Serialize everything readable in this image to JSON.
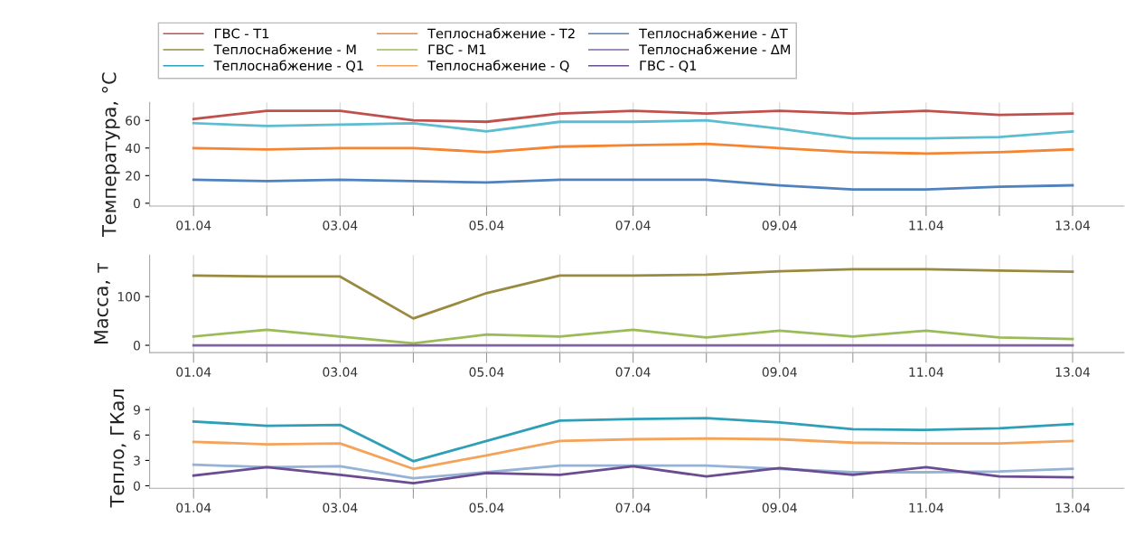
{
  "chart_data": [
    {
      "type": "line",
      "ylabel": "Температура, °C",
      "legend": "top",
      "grid": "x",
      "marker": "none",
      "categories": [
        "01.04",
        null,
        "03.04",
        null,
        "05.04",
        null,
        "07.04",
        null,
        "09.04",
        null,
        "11.04",
        null,
        "13.04"
      ],
      "ylim": [
        -2,
        73
      ],
      "yticks": [
        0,
        20,
        40,
        60
      ],
      "series": [
        {
          "name": "ГВС - T1",
          "color": "#c0504d",
          "values": [
            61,
            67,
            67,
            60,
            59,
            65,
            67,
            65,
            67,
            65,
            67,
            64,
            65
          ]
        },
        {
          "color": "#5cbcd0",
          "values": [
            58,
            56,
            57,
            58,
            52,
            59,
            59,
            60,
            54,
            47,
            47,
            48,
            52
          ]
        },
        {
          "name": "Теплоснабжение - T2",
          "color": "#f58532",
          "values": [
            40,
            39,
            40,
            40,
            37,
            41,
            42,
            43,
            40,
            37,
            36,
            37,
            39
          ]
        },
        {
          "name": "Теплоснабжение - ΔT",
          "color": "#4f81bd",
          "values": [
            17,
            16,
            17,
            16,
            15,
            17,
            17,
            17,
            13,
            10,
            10,
            12,
            13
          ]
        }
      ]
    },
    {
      "type": "line",
      "ylabel": "Масса, т",
      "legend": "top",
      "grid": "x",
      "marker": "none",
      "categories": [
        "01.04",
        null,
        "03.04",
        null,
        "05.04",
        null,
        "07.04",
        null,
        "09.04",
        null,
        "11.04",
        null,
        "13.04"
      ],
      "ylim": [
        -15,
        185
      ],
      "yticks": [
        0,
        100
      ],
      "series": [
        {
          "name": "Теплоснабжение - M",
          "color": "#9a8a40",
          "values": [
            143,
            141,
            141,
            55,
            107,
            143,
            143,
            145,
            152,
            156,
            156,
            153,
            151
          ]
        },
        {
          "name": "ГВС - M1",
          "color": "#9bbb59",
          "values": [
            18,
            32,
            18,
            4,
            22,
            18,
            32,
            16,
            30,
            18,
            30,
            16,
            13
          ]
        },
        {
          "name": "Теплоснабжение - ΔM",
          "color": "#8064a2",
          "values": [
            0,
            0,
            0,
            0,
            0,
            0,
            0,
            0,
            0,
            0,
            0,
            0,
            0
          ]
        }
      ]
    },
    {
      "type": "line",
      "ylabel": "Тепло, ГКал",
      "legend": "top",
      "grid": "x",
      "marker": "none",
      "categories": [
        "01.04",
        null,
        "03.04",
        null,
        "05.04",
        null,
        "07.04",
        null,
        "09.04",
        null,
        "11.04",
        null,
        "13.04"
      ],
      "ylim": [
        -0.3,
        9.3
      ],
      "yticks": [
        0,
        3,
        6,
        9
      ],
      "series": [
        {
          "name": "Теплоснабжение - Q1",
          "color": "#2f9fb8",
          "values": [
            7.6,
            7.1,
            7.2,
            2.9,
            5.3,
            7.7,
            7.9,
            8.0,
            7.5,
            6.7,
            6.6,
            6.8,
            7.3
          ]
        },
        {
          "name": "Теплоснабжение - Q",
          "color": "#f4a45a",
          "values": [
            5.2,
            4.9,
            5.0,
            2.0,
            3.6,
            5.3,
            5.5,
            5.6,
            5.5,
            5.1,
            5.0,
            5.0,
            5.3
          ]
        },
        {
          "color": "#95b3d7",
          "values": [
            2.5,
            2.2,
            2.3,
            0.9,
            1.6,
            2.4,
            2.4,
            2.4,
            2.0,
            1.6,
            1.6,
            1.7,
            2.0
          ]
        },
        {
          "name": "ГВС - Q1",
          "color": "#6a4c93",
          "values": [
            1.2,
            2.2,
            1.3,
            0.3,
            1.5,
            1.3,
            2.3,
            1.1,
            2.1,
            1.3,
            2.2,
            1.1,
            1.0
          ]
        }
      ]
    }
  ]
}
